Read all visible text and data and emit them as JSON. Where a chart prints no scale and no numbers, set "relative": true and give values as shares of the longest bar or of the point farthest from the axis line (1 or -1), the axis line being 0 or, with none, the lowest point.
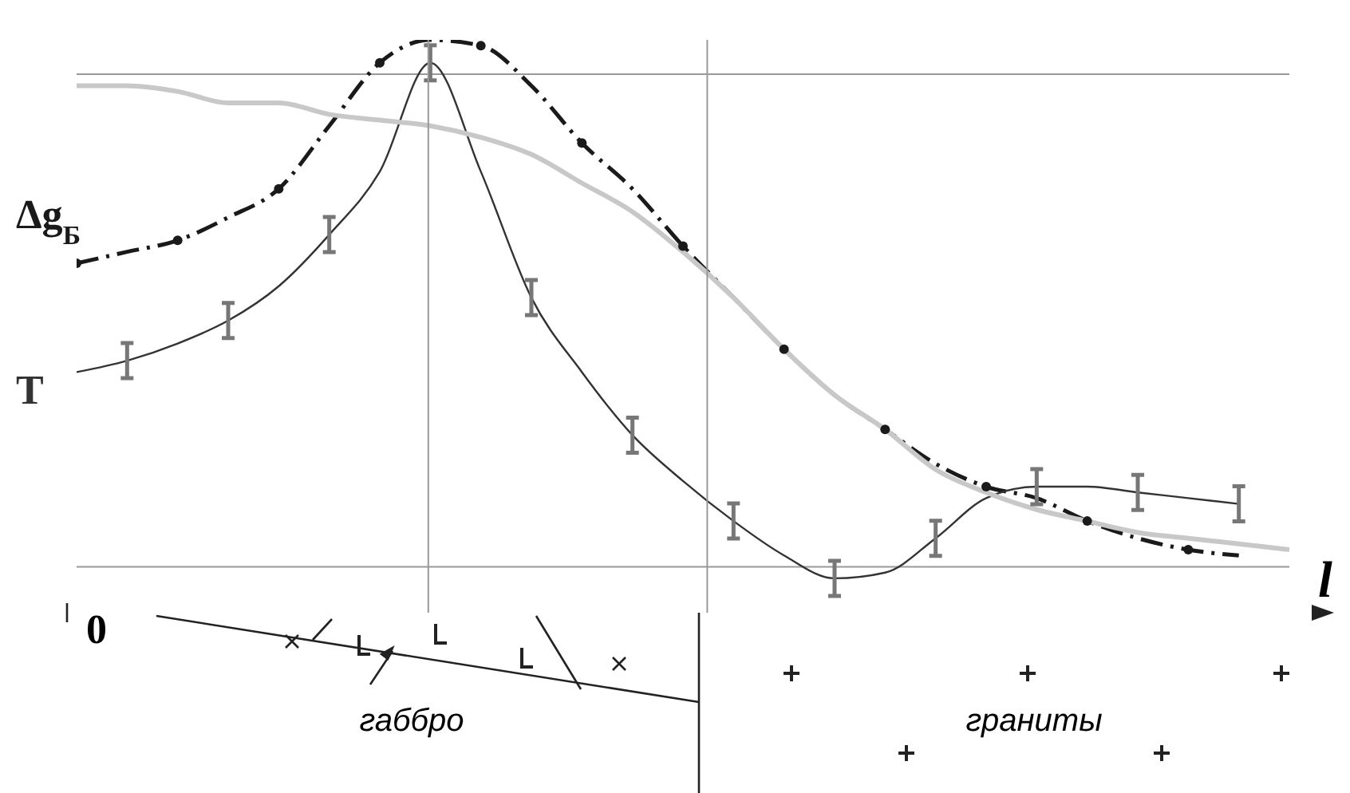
{
  "chart_data": {
    "type": "line",
    "relative": true,
    "xlabel": "l",
    "categories": [
      null,
      null,
      null,
      null,
      null,
      null,
      null,
      null,
      null,
      null,
      null,
      null,
      null,
      null,
      null,
      null,
      null,
      null,
      null,
      null,
      null,
      null,
      null,
      null,
      null
    ],
    "series": [
      {
        "name": "Δg$_{Б}$",
        "color": "#1a1a1a",
        "line_style": "dashed",
        "marker": "circle",
        "values": [
          0.61,
          0.63,
          0.65,
          0.69,
          0.74,
          0.85,
          0.96,
          1.0,
          0.99,
          0.92,
          0.82,
          0.74,
          0.64,
          0.55,
          0.46,
          0.38,
          0.32,
          0.26,
          0.22,
          0.2,
          0.16,
          0.13,
          0.11,
          0.1,
          null
        ]
      },
      {
        "name": "T",
        "color": "#333333",
        "values": [
          0.42,
          0.44,
          0.47,
          0.51,
          0.57,
          0.66,
          0.77,
          0.96,
          0.77,
          0.55,
          0.42,
          0.31,
          0.23,
          0.16,
          0.1,
          0.06,
          0.07,
          0.13,
          0.2,
          0.22,
          0.22,
          0.21,
          0.2,
          0.19,
          null
        ]
      },
      {
        "color": "#c8c8c8",
        "values": [
          0.92,
          0.92,
          0.91,
          0.89,
          0.89,
          0.87,
          0.86,
          0.85,
          0.83,
          0.8,
          0.75,
          0.7,
          0.63,
          0.55,
          0.46,
          0.38,
          0.32,
          0.25,
          0.21,
          0.18,
          0.16,
          0.14,
          0.13,
          0.12,
          0.11
        ]
      }
    ],
    "ref_lines": [
      {
        "axis": "y",
        "value": 0.94,
        "color": "#999999"
      },
      {
        "axis": "y",
        "value": 0.08,
        "color": "#999999"
      }
    ],
    "annotations": [
      "0",
      "габбро",
      "граниты"
    ]
  }
}
